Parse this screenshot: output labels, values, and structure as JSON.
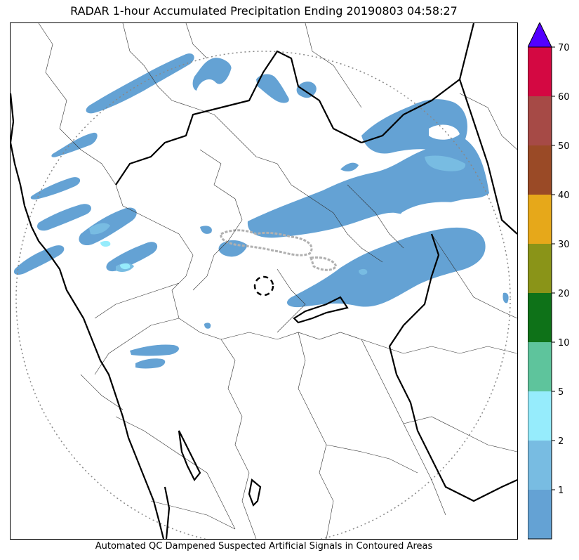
{
  "title": "RADAR 1-hour Accumulated Precipitation Ending 20190803 04:58:27",
  "caption": "Automated QC Dampened Suspected Artificial Signals in Contoured Areas",
  "colorbar": {
    "ticks": [
      "1",
      "2",
      "5",
      "10",
      "20",
      "30",
      "40",
      "50",
      "60",
      "70"
    ],
    "bands": [
      {
        "range": "0-1",
        "color": "#64a2d4"
      },
      {
        "range": "1-2",
        "color": "#78bce2"
      },
      {
        "range": "2-5",
        "color": "#96ecfc"
      },
      {
        "range": "5-10",
        "color": "#5ec49c"
      },
      {
        "range": "10-20",
        "color": "#0e7218"
      },
      {
        "range": "20-30",
        "color": "#8a9418"
      },
      {
        "range": "30-40",
        "color": "#e6a81a"
      },
      {
        "range": "40-50",
        "color": "#9a4a26"
      },
      {
        "range": "50-60",
        "color": "#a64a46"
      },
      {
        "range": "60-70",
        "color": "#d40842"
      }
    ],
    "extend_color": "#5200ff"
  },
  "map": {
    "radar_range_ring": "dotted-circle",
    "radar_site_marker": "dashed-circle",
    "qc_contours": "gray-contoured-areas",
    "coastline": "black-thick-line",
    "boundaries": "black-thin-lines"
  }
}
